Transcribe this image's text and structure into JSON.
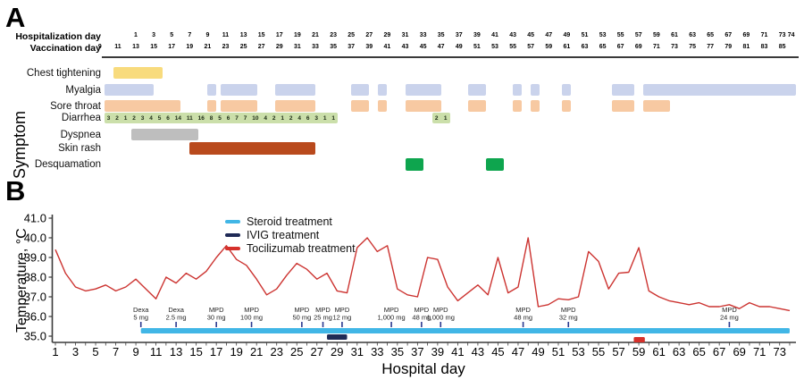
{
  "panel_a": {
    "label": "A",
    "y_axis_label": "Symptom",
    "hosp_axis": {
      "label": "Hospitalization day",
      "ticks": [
        1,
        3,
        5,
        7,
        9,
        11,
        13,
        15,
        17,
        19,
        21,
        23,
        25,
        27,
        29,
        31,
        33,
        35,
        37,
        39,
        41,
        43,
        45,
        47,
        49,
        51,
        53,
        55,
        57,
        59,
        61,
        63,
        65,
        67,
        69,
        71,
        73,
        74
      ]
    },
    "vacc_axis": {
      "label": "Vaccination day",
      "offset_from_hosp": 12,
      "ticks": [
        9,
        11,
        13,
        15,
        17,
        19,
        21,
        23,
        25,
        27,
        29,
        31,
        33,
        35,
        37,
        39,
        41,
        43,
        45,
        47,
        49,
        51,
        53,
        55,
        57,
        59,
        61,
        63,
        65,
        67,
        69,
        71,
        73,
        75,
        77,
        79,
        81,
        83,
        85
      ]
    },
    "symptoms": [
      {
        "name": "Chest tightening",
        "color": "#F8DB7D",
        "bars": [
          {
            "start": -1.5,
            "end": 4
          }
        ]
      },
      {
        "name": "Myalgia",
        "color": "#CAD3EC",
        "bars": [
          {
            "start": -2.5,
            "end": 3
          },
          {
            "start": 9,
            "end": 10
          },
          {
            "start": 10.5,
            "end": 14.5
          },
          {
            "start": 16.5,
            "end": 21
          },
          {
            "start": 25,
            "end": 27
          },
          {
            "start": 28,
            "end": 29
          },
          {
            "start": 31,
            "end": 35
          },
          {
            "start": 38,
            "end": 40
          },
          {
            "start": 43,
            "end": 44
          },
          {
            "start": 45,
            "end": 46
          },
          {
            "start": 48.5,
            "end": 49.5
          },
          {
            "start": 54,
            "end": 56.5
          },
          {
            "start": 57.5,
            "end": 74.5
          }
        ]
      },
      {
        "name": "Sore throat",
        "color": "#F7C9A2",
        "bars": [
          {
            "start": -2.5,
            "end": 6
          },
          {
            "start": 9,
            "end": 10
          },
          {
            "start": 10.5,
            "end": 14.5
          },
          {
            "start": 16.5,
            "end": 21
          },
          {
            "start": 25,
            "end": 27
          },
          {
            "start": 28,
            "end": 29
          },
          {
            "start": 31,
            "end": 35
          },
          {
            "start": 38,
            "end": 40
          },
          {
            "start": 43,
            "end": 44
          },
          {
            "start": 45,
            "end": 46
          },
          {
            "start": 48.5,
            "end": 49.5
          },
          {
            "start": 54,
            "end": 56.5
          },
          {
            "start": 57.5,
            "end": 60.5
          }
        ]
      },
      {
        "name": "Diarrhea",
        "color": "#CBDFAA",
        "bars": [
          {
            "start": -2.5,
            "end": 23.5,
            "counts": [
              3,
              2,
              1,
              2,
              3,
              4,
              5,
              6,
              14,
              11,
              16,
              8,
              5,
              6,
              7,
              7,
              10,
              4,
              2,
              1,
              2,
              4,
              6,
              3,
              1,
              1
            ]
          },
          {
            "start": 34,
            "end": 36,
            "counts": [
              2,
              1
            ]
          }
        ]
      },
      {
        "name": "Dyspnea",
        "color": "#BEBEBE",
        "bars": [
          {
            "start": 0.5,
            "end": 8
          }
        ]
      },
      {
        "name": "Skin rash",
        "color": "#B94A1D",
        "bars": [
          {
            "start": 7,
            "end": 21
          }
        ]
      },
      {
        "name": "Desquamation",
        "color": "#0EA54E",
        "bars": [
          {
            "start": 31,
            "end": 33
          },
          {
            "start": 40,
            "end": 42
          }
        ]
      }
    ]
  },
  "panel_b": {
    "label": "B",
    "y_axis_label": "Temperature, °C",
    "x_axis_label": "Hospital day",
    "legend": [
      {
        "label": "Steroid treatment",
        "color": "#41B6E6"
      },
      {
        "label": "IVIG treatment",
        "color": "#1F2A56"
      },
      {
        "label": "Tocilizumab treatment",
        "color": "#D6312B"
      }
    ]
  },
  "chart_data": {
    "type": "line",
    "title": "",
    "xlabel": "Hospital day",
    "ylabel": "Temperature, °C",
    "xlim": [
      1,
      74
    ],
    "ylim": [
      35.0,
      41.0
    ],
    "x_ticks": [
      1,
      3,
      5,
      7,
      9,
      11,
      13,
      15,
      17,
      19,
      21,
      23,
      25,
      27,
      29,
      31,
      33,
      35,
      37,
      39,
      41,
      43,
      45,
      47,
      49,
      51,
      53,
      55,
      57,
      59,
      61,
      63,
      65,
      67,
      69,
      71,
      73
    ],
    "y_ticks": [
      35.0,
      36.0,
      37.0,
      38.0,
      39.0,
      40.0,
      41.0
    ],
    "grid": false,
    "legend_position": "upper-left",
    "series": [
      {
        "name": "Temperature",
        "color": "#CC3330",
        "x": [
          1,
          2,
          3,
          4,
          5,
          6,
          7,
          8,
          9,
          10,
          11,
          12,
          13,
          14,
          15,
          16,
          17,
          18,
          19,
          20,
          21,
          22,
          23,
          24,
          25,
          26,
          27,
          28,
          29,
          30,
          31,
          32,
          33,
          34,
          35,
          36,
          37,
          38,
          39,
          40,
          41,
          42,
          43,
          44,
          45,
          46,
          47,
          48,
          49,
          50,
          51,
          52,
          53,
          54,
          55,
          56,
          57,
          58,
          59,
          60,
          61,
          62,
          63,
          64,
          65,
          66,
          67,
          68,
          69,
          70,
          71,
          72,
          73,
          74
        ],
        "y": [
          39.4,
          38.2,
          37.5,
          37.3,
          37.4,
          37.6,
          37.3,
          37.5,
          37.9,
          37.4,
          36.9,
          38.0,
          37.7,
          38.2,
          37.9,
          38.3,
          39.0,
          39.6,
          38.9,
          38.6,
          37.9,
          37.1,
          37.4,
          38.1,
          38.7,
          38.4,
          37.9,
          38.2,
          37.3,
          37.2,
          39.5,
          40.0,
          39.3,
          39.6,
          37.4,
          37.1,
          37.0,
          39.0,
          38.9,
          37.5,
          36.8,
          37.2,
          37.6,
          37.1,
          39.0,
          37.2,
          37.5,
          40.0,
          36.5,
          36.6,
          36.9,
          36.85,
          37.0,
          39.3,
          38.8,
          37.4,
          38.2,
          38.25,
          39.5,
          37.3,
          37.0,
          36.8,
          36.7,
          36.6,
          36.7,
          36.5,
          36.5,
          36.6,
          36.4,
          36.7,
          36.5,
          36.5,
          36.4,
          36.3
        ]
      }
    ],
    "treatment_bars": [
      {
        "name": "Steroid treatment",
        "color": "#41B6E6",
        "start": 9.5,
        "end": 74
      },
      {
        "name": "IVIG treatment",
        "color": "#1F2A56",
        "start": 28,
        "end": 30
      },
      {
        "name": "Tocilizumab treatment",
        "color": "#D6312B",
        "start": 58.5,
        "end": 59.6
      }
    ],
    "annotations": [
      {
        "day": 9.5,
        "line1": "Dexa",
        "line2": "5 mg"
      },
      {
        "day": 13,
        "line1": "Dexa",
        "line2": "2.5 mg"
      },
      {
        "day": 17,
        "line1": "MPD",
        "line2": "30 mg"
      },
      {
        "day": 20.5,
        "line1": "MPD",
        "line2": "100 mg"
      },
      {
        "day": 25.5,
        "line1": "MPD",
        "line2": "50 mg"
      },
      {
        "day": 27.6,
        "line1": "MPD",
        "line2": "25 mg"
      },
      {
        "day": 29.5,
        "line1": "MPD",
        "line2": "12 mg"
      },
      {
        "day": 34.4,
        "line1": "MPD",
        "line2": "1,000 mg"
      },
      {
        "day": 37.4,
        "line1": "MPD",
        "line2": "48 mg"
      },
      {
        "day": 39.3,
        "line1": "MPD",
        "line2": "1,000 mg"
      },
      {
        "day": 47.5,
        "line1": "MPD",
        "line2": "48 mg"
      },
      {
        "day": 52,
        "line1": "MPD",
        "line2": "32 mg"
      },
      {
        "day": 68,
        "line1": "MPD",
        "line2": "24 mg"
      }
    ],
    "annotation_tick_color": "#2B3990"
  }
}
